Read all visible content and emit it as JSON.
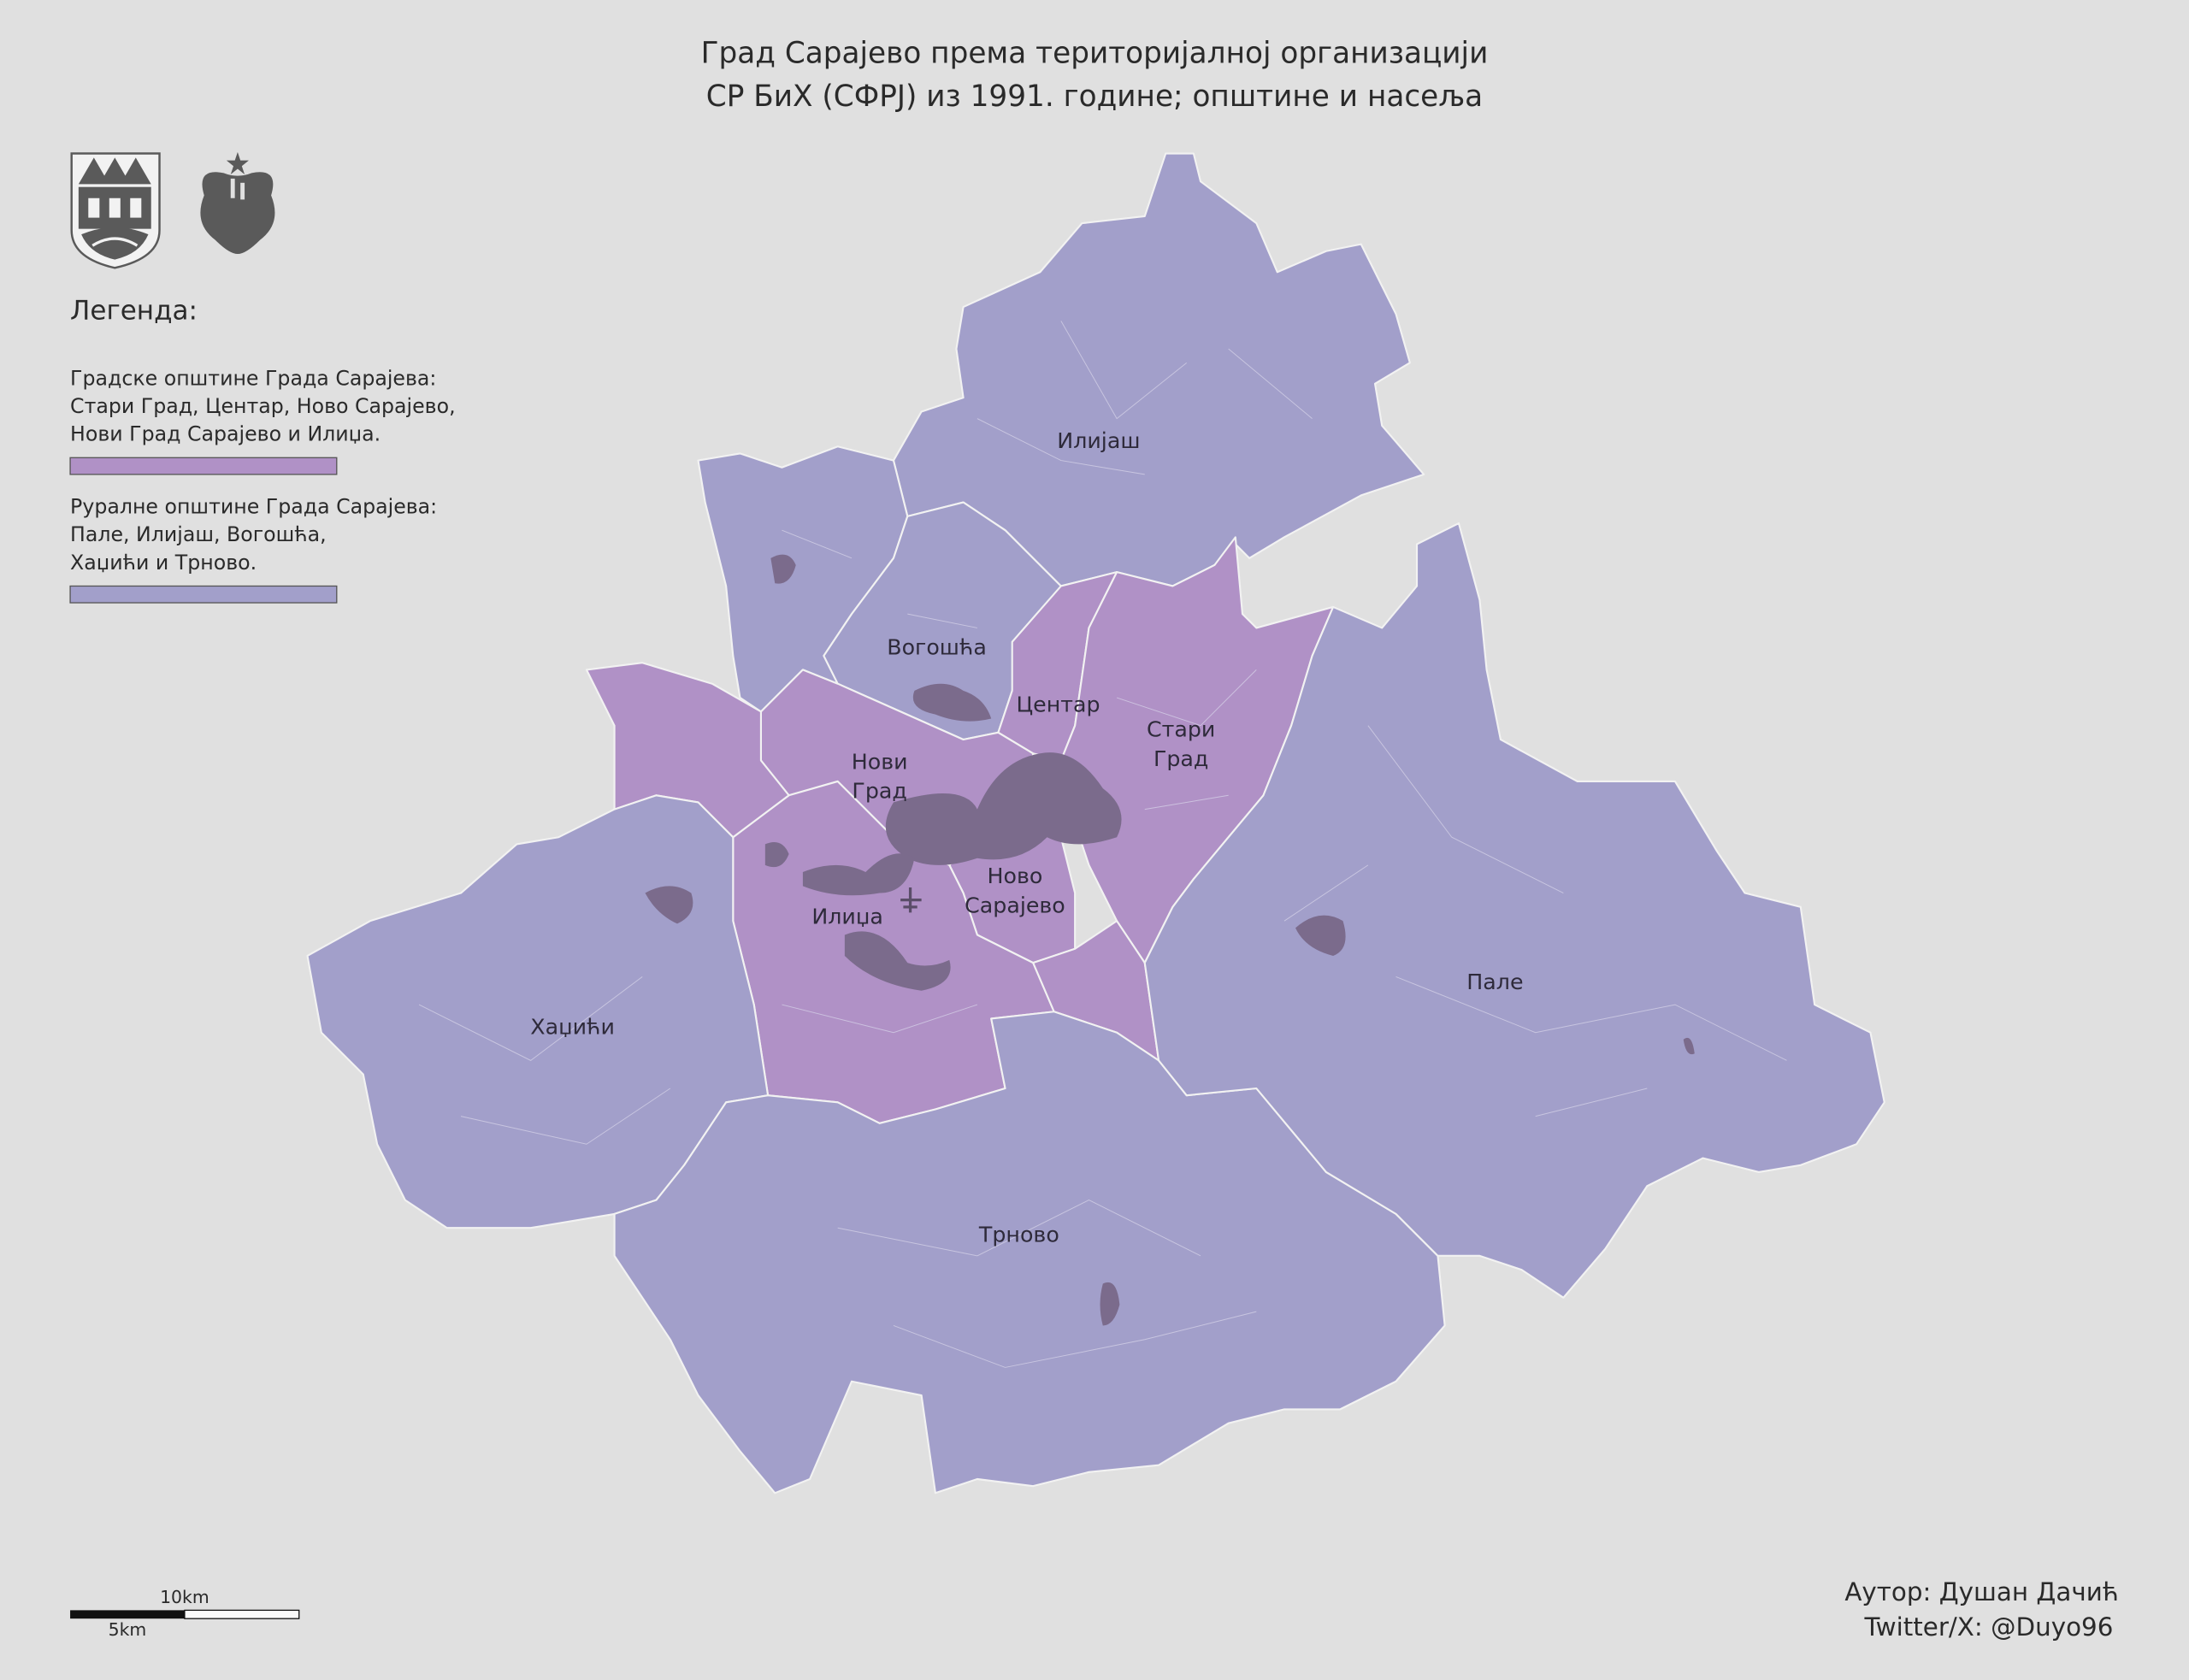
{
  "header": {
    "title_lines": [
      "Град Сарајево према територијалној организацији",
      "СР БиХ (СФРЈ) из 1991. године; општине и насеља"
    ]
  },
  "legend": {
    "heading": "Легенда:",
    "items": [
      {
        "lines": [
          "Градске општине Града Сарајева:",
          "Стари Град, Центар, Ново Сарајево,",
          "Нови Град Сарајево и Илиџа."
        ],
        "color": "#b091c6"
      },
      {
        "lines": [
          "Руралне општине Града Сарајева:",
          "Пале, Илијаш, Вогошћа,",
          "Хаџићи и Трново."
        ],
        "color": "#a29fca"
      }
    ]
  },
  "labels": [
    {
      "lines": [
        "Илијаш"
      ]
    },
    {
      "lines": [
        "Вогошћа"
      ]
    },
    {
      "lines": [
        "Центар"
      ]
    },
    {
      "lines": [
        "Стари",
        "Град"
      ]
    },
    {
      "lines": [
        "Нови",
        "Град"
      ]
    },
    {
      "lines": [
        "Ново",
        "Сарајево"
      ]
    },
    {
      "lines": [
        "Илиџа"
      ]
    },
    {
      "lines": [
        "Хаџићи"
      ]
    },
    {
      "lines": [
        "Пале"
      ]
    },
    {
      "lines": [
        "Трново"
      ]
    }
  ],
  "scale_bar": {
    "long_label": "10km",
    "short_label": "5km"
  },
  "credits": {
    "author": "Аутор: Душан Дачић",
    "twitter": "Twitter/X: @Duyo96"
  }
}
